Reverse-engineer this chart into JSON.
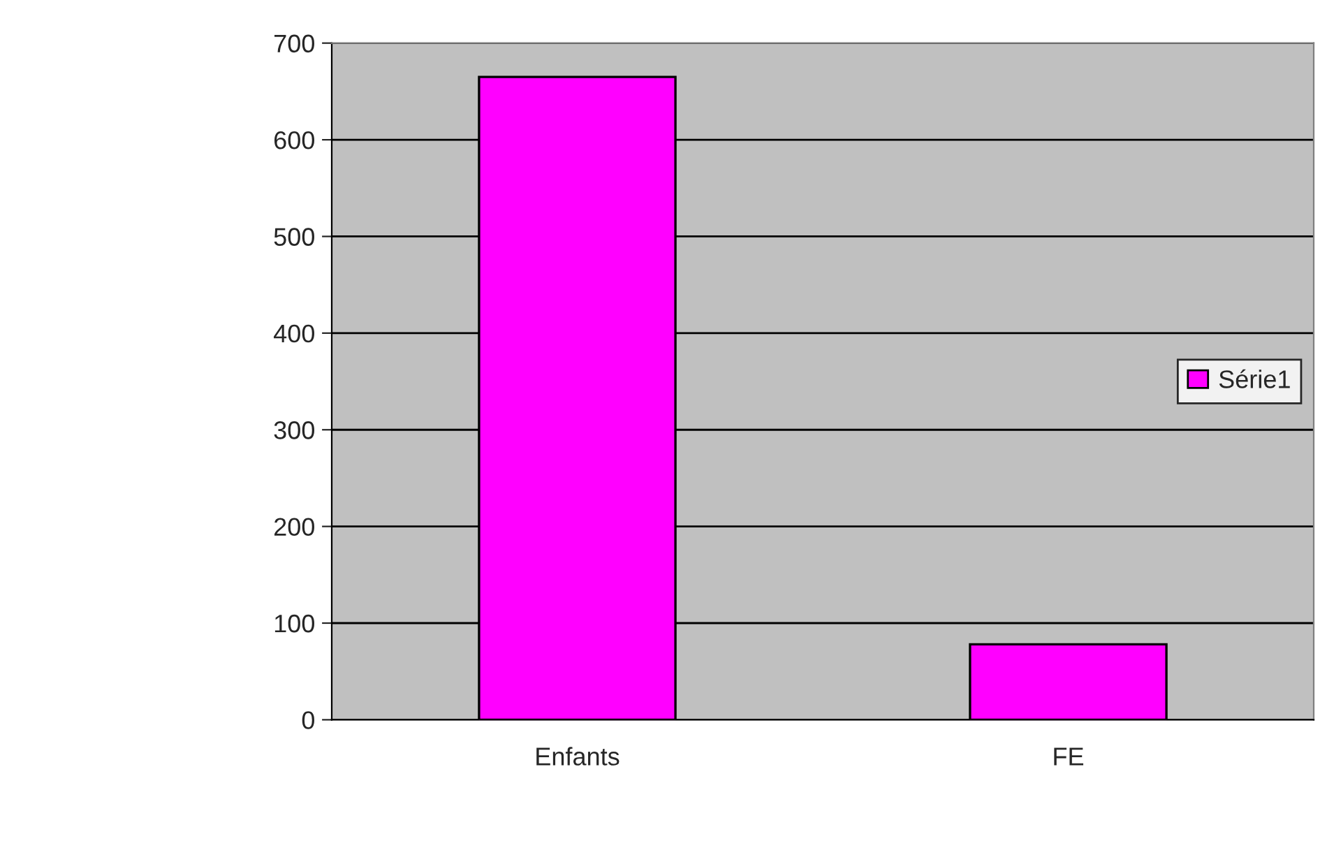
{
  "chart_data": {
    "type": "bar",
    "categories": [
      "Enfants",
      "FE"
    ],
    "series": [
      {
        "name": "Série1",
        "color": "#ff00ff",
        "values": [
          665,
          78
        ]
      }
    ],
    "ylim": [
      0,
      700
    ],
    "yticks": [
      0,
      100,
      200,
      300,
      400,
      500,
      600,
      700
    ],
    "grid": "y",
    "legend": "right"
  }
}
